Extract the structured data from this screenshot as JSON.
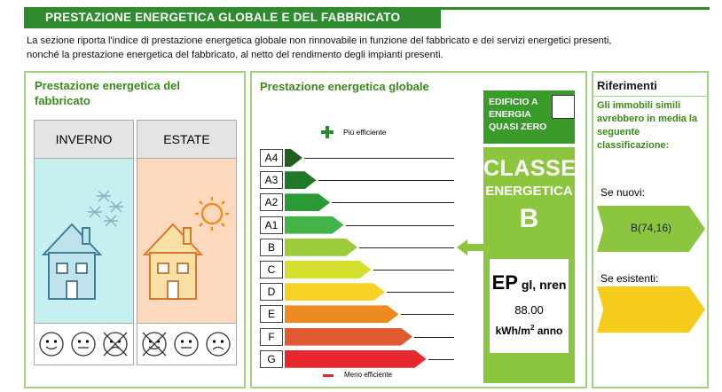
{
  "header": {
    "title": "PRESTAZIONE ENERGETICA GLOBALE  E DEL FABBRICATO"
  },
  "intro": {
    "line1": "La sezione riporta l'indice di prestazione energetica globale non rinnovabile in funzione del fabbricato e dei servizi energetici presenti,",
    "line2": "nonché la prestazione energetica del fabbricato, al netto del rendimento degli impianti presenti."
  },
  "fabbricato": {
    "title": "Prestazione energetica del fabbricato",
    "winter_label": "INVERNO",
    "summer_label": "ESTATE",
    "winter_color": "#c6f0ef",
    "summer_color": "#fcd9bd"
  },
  "globale": {
    "title": "Prestazione energetica globale",
    "more_efficient": "Più efficiente",
    "less_efficient": "Meno efficiente",
    "classes": [
      {
        "label": "A4",
        "color": "#1f5e1f"
      },
      {
        "label": "A3",
        "color": "#1e7a28"
      },
      {
        "label": "A2",
        "color": "#2a9a34"
      },
      {
        "label": "A1",
        "color": "#44b34a"
      },
      {
        "label": "B",
        "color": "#9ccb3b"
      },
      {
        "label": "C",
        "color": "#d4de2c"
      },
      {
        "label": "D",
        "color": "#f7d224"
      },
      {
        "label": "E",
        "color": "#ee8a22"
      },
      {
        "label": "F",
        "color": "#df5a30"
      },
      {
        "label": "G",
        "color": "#e4282d"
      }
    ],
    "nzeb_label": "EDIFICIO A ENERGIA QUASI ZERO",
    "classe_label": "CLASSE",
    "energetica_label": "ENERGETICA",
    "classe_value": "B",
    "ep_label": "EP",
    "ep_subscript": "gl, nren",
    "ep_value": "88.00",
    "ep_unit": "kWh/m",
    "ep_unit_sup": "2",
    "ep_unit_suffix": " anno",
    "indicator_class_index": 4
  },
  "riferimenti": {
    "title": "Riferimenti",
    "description": "Gli immobili simili avrebbero in media la seguente classificazione:",
    "new_label": "Se nuovi:",
    "new_value": "B(74,16)",
    "new_color": "#8cc63f",
    "existing_label": "Se esistenti:",
    "existing_value": "",
    "existing_color": "#f6cc1c"
  }
}
